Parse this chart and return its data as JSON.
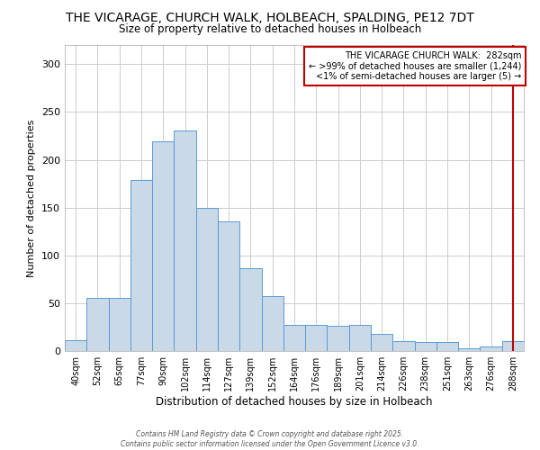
{
  "title": "THE VICARAGE, CHURCH WALK, HOLBEACH, SPALDING, PE12 7DT",
  "subtitle": "Size of property relative to detached houses in Holbeach",
  "xlabel": "Distribution of detached houses by size in Holbeach",
  "ylabel": "Number of detached properties",
  "categories": [
    "40sqm",
    "52sqm",
    "65sqm",
    "77sqm",
    "90sqm",
    "102sqm",
    "114sqm",
    "127sqm",
    "139sqm",
    "152sqm",
    "164sqm",
    "176sqm",
    "189sqm",
    "201sqm",
    "214sqm",
    "226sqm",
    "238sqm",
    "251sqm",
    "263sqm",
    "276sqm",
    "288sqm"
  ],
  "values": [
    11,
    56,
    56,
    179,
    219,
    231,
    150,
    136,
    87,
    57,
    27,
    27,
    26,
    27,
    18,
    10,
    9,
    9,
    3,
    5,
    10
  ],
  "bar_color": "#c9d9e8",
  "bar_edge_color": "#5b9bd5",
  "vline_color": "#c00000",
  "annotation_line1": "THE VICARAGE CHURCH WALK:  282sqm",
  "annotation_line2": "← >99% of detached houses are smaller (1,244)",
  "annotation_line3": "<1% of semi-detached houses are larger (5) →",
  "annotation_box_color": "#c00000",
  "ylim": [
    0,
    320
  ],
  "yticks": [
    0,
    50,
    100,
    150,
    200,
    250,
    300
  ],
  "footer_text": "Contains HM Land Registry data © Crown copyright and database right 2025.\nContains public sector information licensed under the Open Government Licence v3.0.",
  "bg_color": "#ffffff",
  "grid_color": "#cccccc"
}
